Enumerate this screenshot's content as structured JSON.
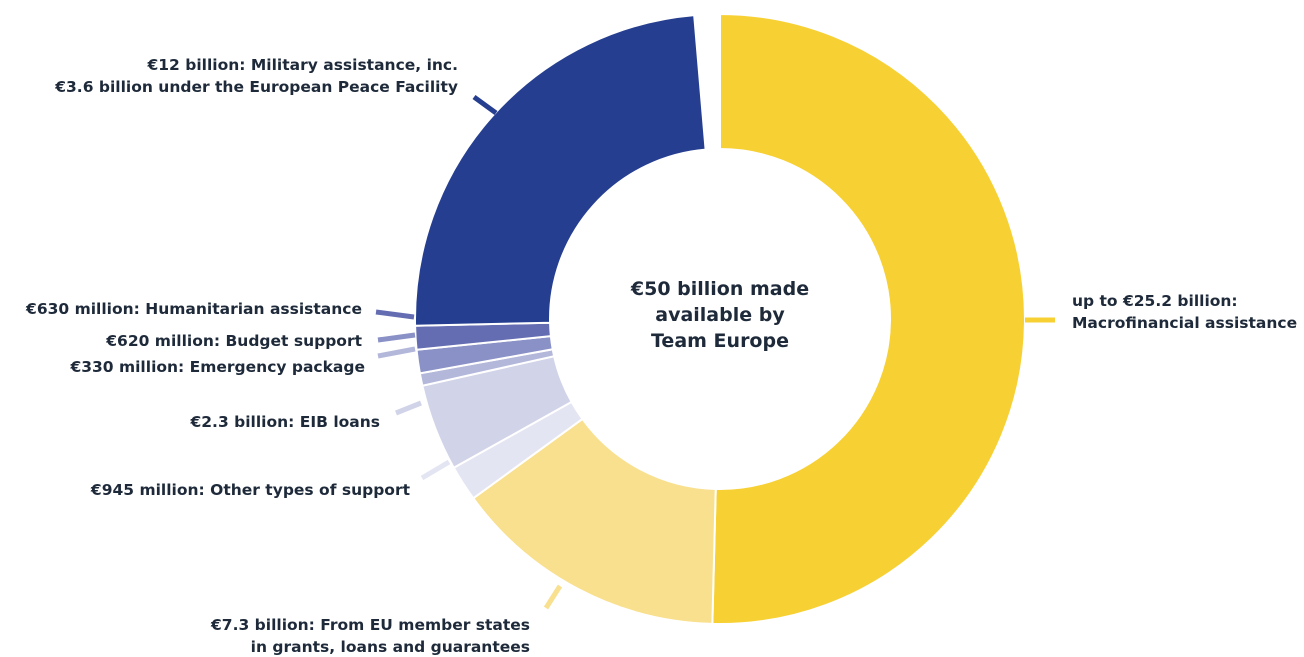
{
  "chart_data": {
    "type": "pie",
    "variant": "donut",
    "center_label": [
      "€50 billion made",
      "available by",
      "Team Europe"
    ],
    "total": 50,
    "slices": [
      {
        "name": "up to €25.2 billion: Macrofinancial assistance",
        "value": 25.2,
        "color": "#f7d033",
        "label": [
          "up to €25.2 billion:",
          "Macrofinancial assistance"
        ]
      },
      {
        "name": "€7.3 billion: From EU member states in grants, loans and guarantees",
        "value": 7.3,
        "color": "#f8e08e",
        "label": [
          "€7.3 billion: From EU member states",
          "in grants, loans and guarantees"
        ]
      },
      {
        "name": "€945 million: Other types of support",
        "value": 0.945,
        "color": "#e4e5f2",
        "label": [
          "€945 million: Other types of support"
        ]
      },
      {
        "name": "€2.3 billion: EIB loans",
        "value": 2.3,
        "color": "#d1d3e8",
        "label": [
          "€2.3 billion: EIB loans"
        ]
      },
      {
        "name": "€330 million: Emergency package",
        "value": 0.33,
        "color": "#b3b7da",
        "label": [
          "€330 million: Emergency package"
        ]
      },
      {
        "name": "€620 million: Budget support",
        "value": 0.62,
        "color": "#8a91c6",
        "label": [
          "€620 million: Budget support"
        ]
      },
      {
        "name": "€630 million: Humanitarian assistance",
        "value": 0.63,
        "color": "#656db2",
        "label": [
          "€630 million: Humanitarian assistance"
        ]
      },
      {
        "name": "€12 billion: Military assistance, inc. €3.6 billion under the European Peace Facility",
        "value": 12,
        "color": "#253e8f",
        "label": [
          "€12 billion: Military assistance, inc.",
          "€3.6 billion under the European Peace Facility"
        ]
      }
    ]
  }
}
